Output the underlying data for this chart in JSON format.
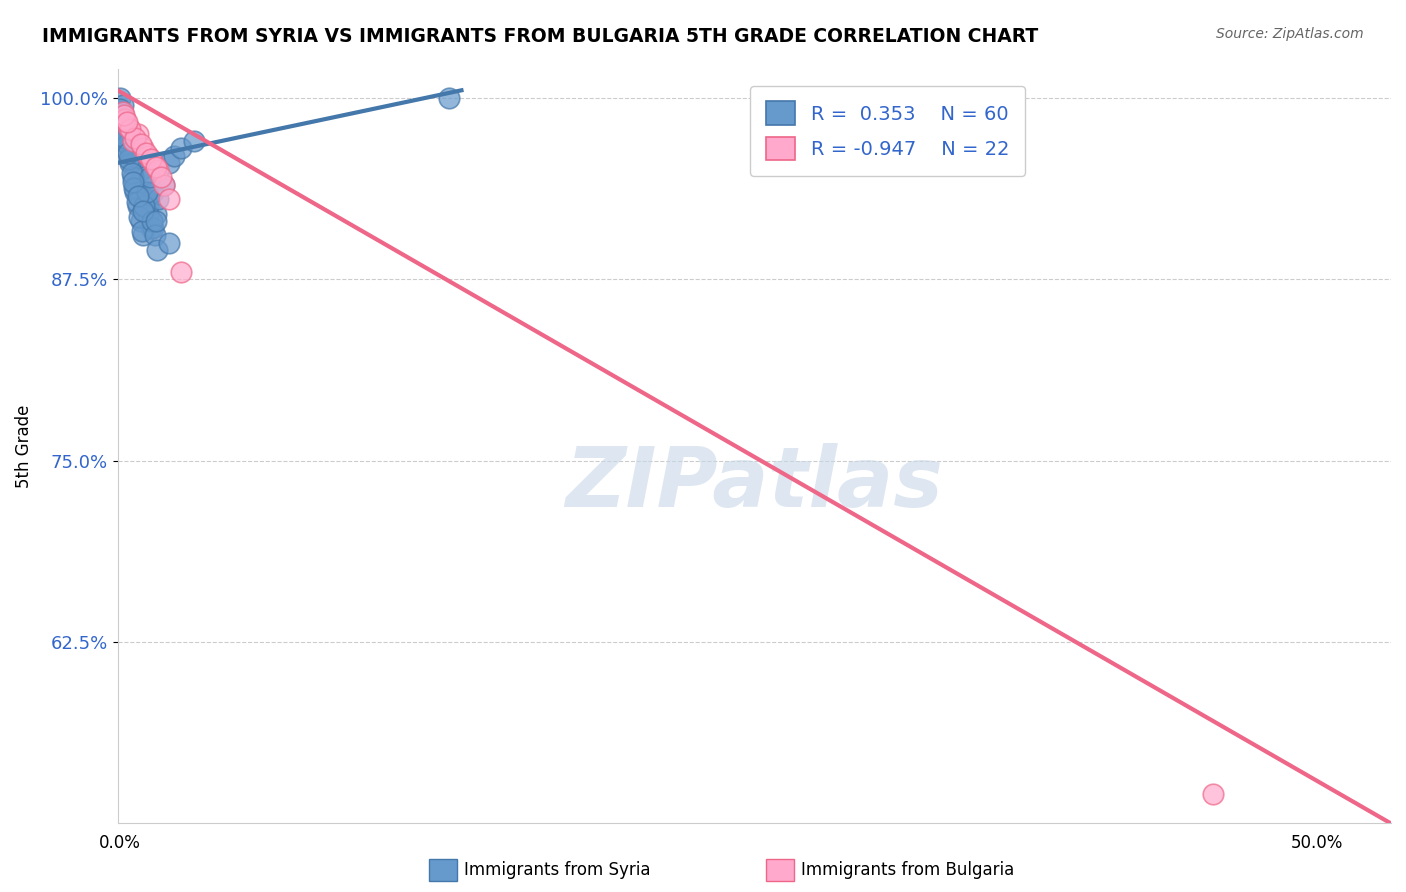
{
  "title": "IMMIGRANTS FROM SYRIA VS IMMIGRANTS FROM BULGARIA 5TH GRADE CORRELATION CHART",
  "source": "Source: ZipAtlas.com",
  "ylabel": "5th Grade",
  "xlim": [
    0.0,
    50.0
  ],
  "ylim": [
    50.0,
    102.0
  ],
  "yticks": [
    62.5,
    75.0,
    87.5,
    100.0
  ],
  "ytick_labels": [
    "62.5%",
    "75.0%",
    "87.5%",
    "100.0%"
  ],
  "syria_color": "#6699cc",
  "syria_edge": "#4477aa",
  "bulgaria_color": "#ffaacc",
  "bulgaria_edge": "#ee6688",
  "syria_R": 0.353,
  "syria_N": 60,
  "bulgaria_R": -0.947,
  "bulgaria_N": 22,
  "watermark": "ZIPatlas",
  "watermark_color": "#c8d8e8",
  "legend_label_syria": "Immigrants from Syria",
  "legend_label_bulgaria": "Immigrants from Bulgaria",
  "syria_scatter_x": [
    0.15,
    0.2,
    0.25,
    0.3,
    0.35,
    0.4,
    0.5,
    0.6,
    0.7,
    0.8,
    0.9,
    1.0,
    1.1,
    1.2,
    1.3,
    1.4,
    1.5,
    0.1,
    0.2,
    0.3,
    0.4,
    0.5,
    0.6,
    0.7,
    0.8,
    0.9,
    1.0,
    1.2,
    1.4,
    1.6,
    1.8,
    2.0,
    2.2,
    2.5,
    3.0,
    0.15,
    0.25,
    0.35,
    0.45,
    0.55,
    0.65,
    0.75,
    0.85,
    0.95,
    1.05,
    1.15,
    1.25,
    1.35,
    1.45,
    1.55,
    0.1,
    0.2,
    0.3,
    0.4,
    0.6,
    0.8,
    1.0,
    1.5,
    2.0,
    13.0
  ],
  "syria_scatter_y": [
    99.0,
    98.5,
    97.0,
    96.5,
    98.0,
    97.5,
    96.0,
    95.5,
    94.0,
    93.5,
    95.0,
    94.5,
    93.0,
    92.5,
    91.0,
    93.5,
    92.0,
    100.0,
    99.5,
    98.0,
    97.0,
    95.5,
    94.5,
    93.5,
    92.5,
    91.5,
    90.5,
    92.0,
    91.0,
    93.0,
    94.0,
    95.5,
    96.0,
    96.5,
    97.0,
    98.5,
    97.5,
    96.8,
    95.8,
    94.8,
    93.8,
    92.8,
    91.8,
    90.8,
    92.5,
    93.5,
    94.5,
    91.5,
    90.5,
    89.5,
    99.2,
    98.2,
    97.2,
    96.2,
    94.2,
    93.2,
    92.2,
    91.5,
    90.0,
    100.0
  ],
  "bulgaria_scatter_x": [
    0.2,
    0.4,
    0.6,
    0.8,
    1.0,
    1.2,
    1.4,
    1.6,
    1.8,
    2.0,
    0.3,
    0.5,
    0.7,
    0.9,
    1.1,
    1.3,
    1.5,
    1.7,
    0.25,
    2.5,
    0.35,
    43.0
  ],
  "bulgaria_scatter_y": [
    99.0,
    98.0,
    97.0,
    97.5,
    96.5,
    96.0,
    95.5,
    95.0,
    94.0,
    93.0,
    98.5,
    97.8,
    97.2,
    96.8,
    96.2,
    95.8,
    95.2,
    94.5,
    98.8,
    88.0,
    98.3,
    52.0
  ],
  "syria_line_x": [
    0.0,
    13.5
  ],
  "syria_line_y": [
    95.5,
    100.5
  ],
  "bulgaria_line_x": [
    0.0,
    50.0
  ],
  "bulgaria_line_y": [
    100.5,
    50.0
  ]
}
